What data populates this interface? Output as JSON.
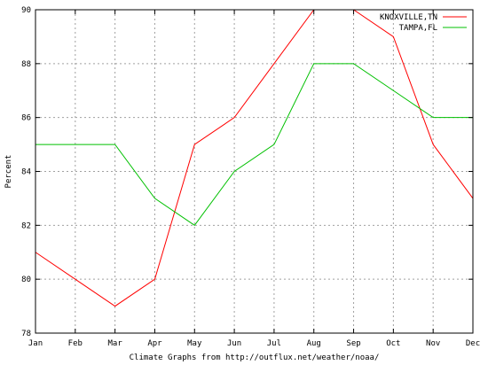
{
  "chart_data": {
    "type": "line",
    "categories": [
      "Jan",
      "Feb",
      "Mar",
      "Apr",
      "May",
      "Jun",
      "Jul",
      "Aug",
      "Sep",
      "Oct",
      "Nov",
      "Dec"
    ],
    "series": [
      {
        "name": "KNOXVILLE,TN",
        "color": "#ff0000",
        "values": [
          81,
          80,
          79,
          80,
          85,
          86,
          88,
          90,
          90,
          89,
          85,
          83
        ]
      },
      {
        "name": "TAMPA,FL",
        "color": "#00c000",
        "values": [
          85,
          85,
          85,
          83,
          82,
          84,
          85,
          88,
          88,
          87,
          86,
          86
        ]
      }
    ],
    "title": "",
    "xlabel": "Climate Graphs from http://outflux.net/weather/noaa/",
    "ylabel": "Percent",
    "ylim": [
      78,
      90
    ],
    "yticks": [
      78,
      80,
      82,
      84,
      86,
      88,
      90
    ],
    "grid": true,
    "legend_position": "top-right"
  }
}
